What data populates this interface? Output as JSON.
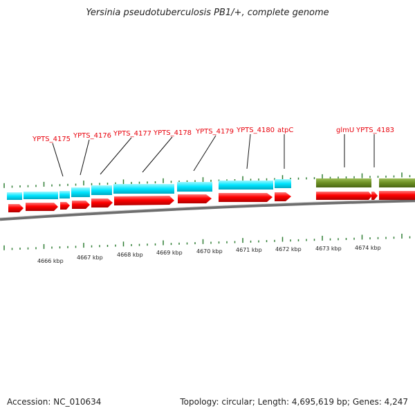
{
  "title": "Yersinia pseudotuberculosis PB1/+, complete genome",
  "footer": {
    "accession": "Accession: NC_010634",
    "summary": "Topology: circular; Length: 4,695,619 bp; Genes: 4,247"
  },
  "colors": {
    "gene_label": "#e8000b",
    "cds_forward": "#ff0000",
    "feature_cyan": "#00e5ff",
    "feature_olive": "#6b8e23",
    "tick_green": "#2e7d32",
    "backbone": "#6e6e6e"
  },
  "gene_labels": [
    {
      "text": "YPTS_4175"
    },
    {
      "text": "YPTS_4176"
    },
    {
      "text": "YPTS_4177"
    },
    {
      "text": "YPTS_4178"
    },
    {
      "text": "YPTS_4179"
    },
    {
      "text": "YPTS_4180"
    },
    {
      "text": "atpC"
    },
    {
      "text": "glmU"
    },
    {
      "text": "YPTS_4183"
    }
  ],
  "scale_labels": [
    "4666 kbp",
    "4667 kbp",
    "4668 kbp",
    "4669 kbp",
    "4670 kbp",
    "4671 kbp",
    "4672 kbp",
    "4673 kbp",
    "4674 kbp"
  ]
}
